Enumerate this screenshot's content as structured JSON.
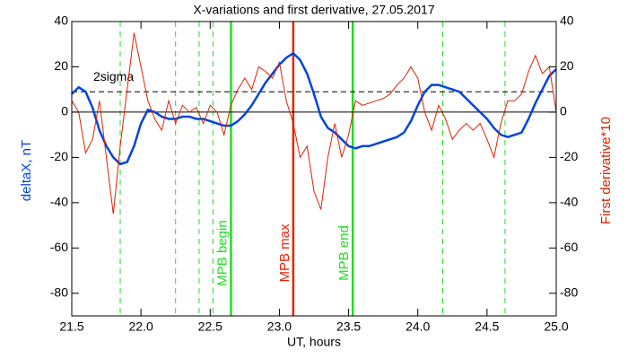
{
  "chart_data": {
    "type": "line",
    "title": "X-variations and first derivative, 27.05.2017",
    "xlabel": "UT, hours",
    "ylabel": "deltaX, nT",
    "y2label": "First derivative*10",
    "x": [
      21.5,
      21.55,
      21.6,
      21.65,
      21.7,
      21.75,
      21.8,
      21.85,
      21.9,
      21.95,
      22.0,
      22.05,
      22.1,
      22.15,
      22.2,
      22.25,
      22.3,
      22.35,
      22.4,
      22.45,
      22.5,
      22.55,
      22.6,
      22.65,
      22.7,
      22.75,
      22.8,
      22.85,
      22.9,
      22.95,
      23.0,
      23.05,
      23.1,
      23.15,
      23.2,
      23.25,
      23.3,
      23.35,
      23.4,
      23.45,
      23.5,
      23.55,
      23.6,
      23.65,
      23.7,
      23.75,
      23.8,
      23.85,
      23.9,
      23.95,
      24.0,
      24.05,
      24.1,
      24.15,
      24.2,
      24.25,
      24.3,
      24.35,
      24.4,
      24.45,
      24.5,
      24.55,
      24.6,
      24.65,
      24.7,
      24.75,
      24.8,
      24.85,
      24.9,
      24.95,
      25.0
    ],
    "series": [
      {
        "name": "deltaX",
        "color": "#0044dd",
        "axis": "y",
        "values": [
          8,
          11,
          9,
          2,
          -8,
          -15,
          -20,
          -23,
          -22,
          -15,
          -5,
          1,
          0,
          -2,
          -3,
          -3,
          -2,
          -2,
          -3,
          -3,
          -4,
          -5,
          -6,
          -6,
          -4,
          -1,
          3,
          8,
          13,
          17,
          21,
          24,
          26,
          23,
          17,
          8,
          -2,
          -7,
          -9,
          -12,
          -15,
          -16,
          -15,
          -15,
          -14,
          -13,
          -12,
          -11,
          -9,
          -4,
          3,
          9,
          12,
          12,
          11,
          10,
          9,
          6,
          3,
          0,
          -3,
          -7,
          -10,
          -11,
          -10,
          -9,
          -3,
          4,
          10,
          16,
          19
        ]
      },
      {
        "name": "First derivative*10",
        "color": "#dd2200",
        "axis": "y2",
        "values": [
          5,
          0,
          -18,
          -12,
          5,
          -20,
          -45,
          -15,
          10,
          35,
          20,
          5,
          -3,
          -8,
          5,
          -5,
          3,
          0,
          2,
          -5,
          3,
          0,
          -10,
          3,
          10,
          15,
          10,
          20,
          18,
          15,
          22,
          5,
          -5,
          -20,
          -15,
          -35,
          -43,
          -20,
          -5,
          -20,
          -10,
          5,
          3,
          4,
          5,
          6,
          8,
          12,
          15,
          20,
          15,
          0,
          -8,
          3,
          -3,
          -12,
          -8,
          -5,
          -8,
          -5,
          -12,
          -20,
          -5,
          5,
          5,
          8,
          18,
          25,
          17,
          20,
          0
        ]
      }
    ],
    "xlim": [
      21.5,
      25.0
    ],
    "xticks": [
      21.5,
      {
        "value": 22.0,
        "label": "22.0"
      },
      22.5,
      {
        "value": 23.0,
        "label": "23.0"
      },
      23.5,
      {
        "value": 24.0,
        "label": "24.0"
      },
      24.5,
      {
        "value": 25.0,
        "label": "25.0"
      }
    ],
    "ylim": [
      -90,
      40
    ],
    "yticks": [
      40,
      20,
      0,
      -20,
      -40,
      -60,
      -80
    ],
    "y2lim": [
      -90,
      40
    ],
    "y2ticks": [
      40,
      20,
      0,
      -20,
      -40,
      -60,
      -80
    ],
    "hlines": [
      {
        "y": 0,
        "style": "solid"
      },
      {
        "y": 9,
        "style": "dashed",
        "label": "2sigma"
      }
    ],
    "vlines": [
      {
        "x": 21.85,
        "style": "dashed",
        "color": "#22dd22"
      },
      {
        "x": 22.25,
        "style": "dashed",
        "color": "#22dd22"
      },
      {
        "x": 22.42,
        "style": "dashed",
        "color": "#22dd22"
      },
      {
        "x": 22.52,
        "style": "dashed",
        "color": "#22dd22"
      },
      {
        "x": 22.65,
        "style": "solid",
        "color": "#22dd22",
        "label": "MPB begin"
      },
      {
        "x": 23.1,
        "style": "solid",
        "color": "#ee2200",
        "label": "MPB max"
      },
      {
        "x": 23.53,
        "style": "solid",
        "color": "#22dd22",
        "label": "MPB end"
      },
      {
        "x": 24.18,
        "style": "dashed",
        "color": "#22dd22"
      },
      {
        "x": 24.63,
        "style": "dashed",
        "color": "#22dd22"
      }
    ]
  }
}
